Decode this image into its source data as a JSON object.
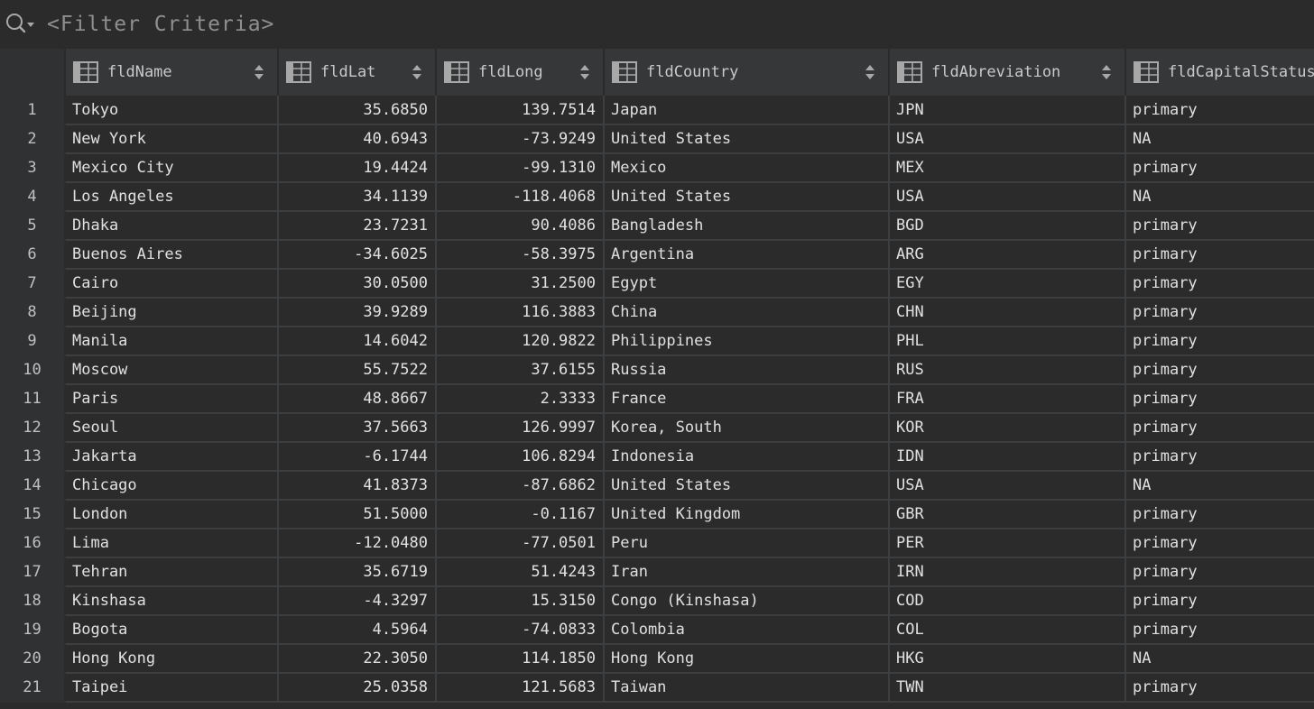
{
  "filter": {
    "placeholder": "<Filter Criteria>"
  },
  "columns": [
    {
      "label": "fldName"
    },
    {
      "label": "fldLat"
    },
    {
      "label": "fldLong"
    },
    {
      "label": "fldCountry"
    },
    {
      "label": "fldAbreviation"
    },
    {
      "label": "fldCapitalStatus"
    }
  ],
  "rows": [
    {
      "n": "1",
      "cells": [
        "Tokyo",
        "35.6850",
        "139.7514",
        "Japan",
        "JPN",
        "primary"
      ]
    },
    {
      "n": "2",
      "cells": [
        "New York",
        "40.6943",
        "-73.9249",
        "United States",
        "USA",
        "NA"
      ]
    },
    {
      "n": "3",
      "cells": [
        "Mexico City",
        "19.4424",
        "-99.1310",
        "Mexico",
        "MEX",
        "primary"
      ]
    },
    {
      "n": "4",
      "cells": [
        "Los Angeles",
        "34.1139",
        "-118.4068",
        "United States",
        "USA",
        "NA"
      ]
    },
    {
      "n": "5",
      "cells": [
        "Dhaka",
        "23.7231",
        "90.4086",
        "Bangladesh",
        "BGD",
        "primary"
      ]
    },
    {
      "n": "6",
      "cells": [
        "Buenos Aires",
        "-34.6025",
        "-58.3975",
        "Argentina",
        "ARG",
        "primary"
      ]
    },
    {
      "n": "7",
      "cells": [
        "Cairo",
        "30.0500",
        "31.2500",
        "Egypt",
        "EGY",
        "primary"
      ]
    },
    {
      "n": "8",
      "cells": [
        "Beijing",
        "39.9289",
        "116.3883",
        "China",
        "CHN",
        "primary"
      ]
    },
    {
      "n": "9",
      "cells": [
        "Manila",
        "14.6042",
        "120.9822",
        "Philippines",
        "PHL",
        "primary"
      ]
    },
    {
      "n": "10",
      "cells": [
        "Moscow",
        "55.7522",
        "37.6155",
        "Russia",
        "RUS",
        "primary"
      ]
    },
    {
      "n": "11",
      "cells": [
        "Paris",
        "48.8667",
        "2.3333",
        "France",
        "FRA",
        "primary"
      ]
    },
    {
      "n": "12",
      "cells": [
        "Seoul",
        "37.5663",
        "126.9997",
        "Korea, South",
        "KOR",
        "primary"
      ]
    },
    {
      "n": "13",
      "cells": [
        "Jakarta",
        "-6.1744",
        "106.8294",
        "Indonesia",
        "IDN",
        "primary"
      ]
    },
    {
      "n": "14",
      "cells": [
        "Chicago",
        "41.8373",
        "-87.6862",
        "United States",
        "USA",
        "NA"
      ]
    },
    {
      "n": "15",
      "cells": [
        "London",
        "51.5000",
        "-0.1167",
        "United Kingdom",
        "GBR",
        "primary"
      ]
    },
    {
      "n": "16",
      "cells": [
        "Lima",
        "-12.0480",
        "-77.0501",
        "Peru",
        "PER",
        "primary"
      ]
    },
    {
      "n": "17",
      "cells": [
        "Tehran",
        "35.6719",
        "51.4243",
        "Iran",
        "IRN",
        "primary"
      ]
    },
    {
      "n": "18",
      "cells": [
        "Kinshasa",
        "-4.3297",
        "15.3150",
        "Congo (Kinshasa)",
        "COD",
        "primary"
      ]
    },
    {
      "n": "19",
      "cells": [
        "Bogota",
        "4.5964",
        "-74.0833",
        "Colombia",
        "COL",
        "primary"
      ]
    },
    {
      "n": "20",
      "cells": [
        "Hong Kong",
        "22.3050",
        "114.1850",
        "Hong Kong",
        "HKG",
        "NA"
      ]
    },
    {
      "n": "21",
      "cells": [
        "Taipei",
        "25.0358",
        "121.5683",
        "Taiwan",
        "TWN",
        "primary"
      ]
    }
  ],
  "icons": {
    "search": "search-icon",
    "column": "table-column-icon",
    "sort": "sort-icon"
  },
  "colors": {
    "background": "#2b2b2b",
    "header": "#353739",
    "grid_line": "#3c3e40"
  }
}
